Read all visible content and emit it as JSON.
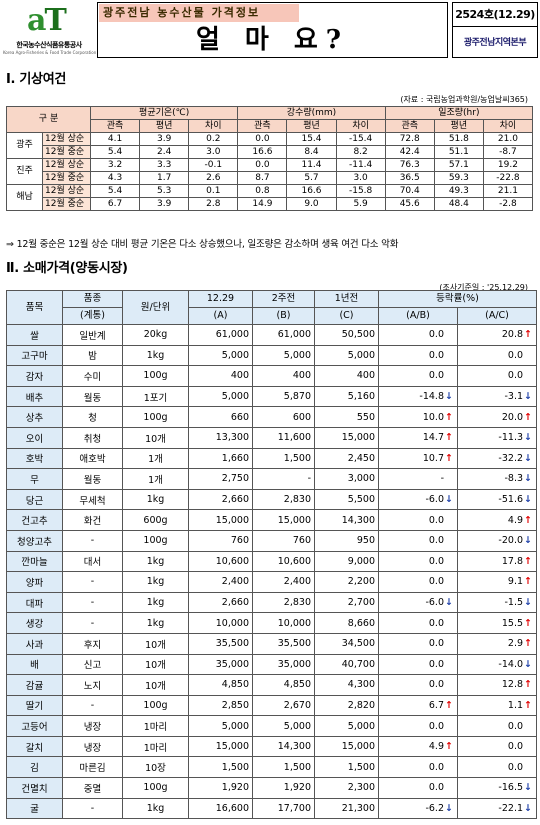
{
  "header": {
    "logo_mark_a": "a",
    "logo_mark_t": "T",
    "logo_kr": "한국농수산식품유통공사",
    "logo_en": "Korea Agro-Fisheries & Food Trade Corporation",
    "subtitle": "광주전남 농수산물 가격정보",
    "title": "얼 마 요?",
    "issue": "2524호(12.29)",
    "org": "광주전남지역본부"
  },
  "section1": {
    "heading": "Ⅰ. 기상여건",
    "source": "(자료 : 국립농업과학원/농업날씨365)",
    "header_group": "구  분",
    "groups": [
      "평균기온(℃)",
      "강수량(mm)",
      "일조량(hr)"
    ],
    "subheaders": [
      "관측",
      "평년",
      "차이"
    ],
    "regions": [
      {
        "name": "광주",
        "rows": [
          {
            "period": "12월 상순",
            "v": [
              "4.1",
              "3.9",
              "0.2",
              "0.0",
              "15.4",
              "-15.4",
              "72.8",
              "51.8",
              "21.0"
            ]
          },
          {
            "period": "12월 중순",
            "v": [
              "5.4",
              "2.4",
              "3.0",
              "16.6",
              "8.4",
              "8.2",
              "42.4",
              "51.1",
              "-8.7"
            ]
          }
        ]
      },
      {
        "name": "진주",
        "rows": [
          {
            "period": "12월 상순",
            "v": [
              "3.2",
              "3.3",
              "-0.1",
              "0.0",
              "11.4",
              "-11.4",
              "76.3",
              "57.1",
              "19.2"
            ]
          },
          {
            "period": "12월 중순",
            "v": [
              "4.3",
              "1.7",
              "2.6",
              "8.7",
              "5.7",
              "3.0",
              "36.5",
              "59.3",
              "-22.8"
            ]
          }
        ]
      },
      {
        "name": "해남",
        "rows": [
          {
            "period": "12월 상순",
            "v": [
              "5.4",
              "5.3",
              "0.1",
              "0.8",
              "16.6",
              "-15.8",
              "70.4",
              "49.3",
              "21.1"
            ]
          },
          {
            "period": "12월 중순",
            "v": [
              "6.7",
              "3.9",
              "2.8",
              "14.9",
              "9.0",
              "5.9",
              "45.6",
              "48.4",
              "-2.8"
            ]
          }
        ]
      }
    ],
    "note": "⇒ 12월 중순은 12월 상순 대비 평균 기온은 다소 상승했으나, 일조량은 감소하며 생육 여건 다소 악화"
  },
  "section2": {
    "heading": "Ⅱ. 소매가격(양동시장)",
    "survey_date": "(조사기준일 : '25.12.29)",
    "columns": {
      "item": "품목",
      "variety": "품종",
      "variety2": "(계통)",
      "unit": "원/단위",
      "c1": "12.29",
      "c1b": "(A)",
      "c2": "2주전",
      "c2b": "(B)",
      "c3": "1년전",
      "c3b": "(C)",
      "rate": "등락률(%)",
      "r1": "(A/B)",
      "r2": "(A/C)"
    },
    "rows": [
      {
        "item": "쌀",
        "variety": "일반계",
        "unit": "20kg",
        "a": "61,000",
        "b": "61,000",
        "c": "50,500",
        "ab": "0.0",
        "ab_dir": "",
        "ac": "20.8",
        "ac_dir": "up"
      },
      {
        "item": "고구마",
        "variety": "밤",
        "unit": "1kg",
        "a": "5,000",
        "b": "5,000",
        "c": "5,000",
        "ab": "0.0",
        "ab_dir": "",
        "ac": "0.0",
        "ac_dir": ""
      },
      {
        "item": "감자",
        "variety": "수미",
        "unit": "100g",
        "a": "400",
        "b": "400",
        "c": "400",
        "ab": "0.0",
        "ab_dir": "",
        "ac": "0.0",
        "ac_dir": ""
      },
      {
        "item": "배추",
        "variety": "월동",
        "unit": "1포기",
        "a": "5,000",
        "b": "5,870",
        "c": "5,160",
        "ab": "-14.8",
        "ab_dir": "dn",
        "ac": "-3.1",
        "ac_dir": "dn"
      },
      {
        "item": "상추",
        "variety": "청",
        "unit": "100g",
        "a": "660",
        "b": "600",
        "c": "550",
        "ab": "10.0",
        "ab_dir": "up",
        "ac": "20.0",
        "ac_dir": "up"
      },
      {
        "item": "오이",
        "variety": "취청",
        "unit": "10개",
        "a": "13,300",
        "b": "11,600",
        "c": "15,000",
        "ab": "14.7",
        "ab_dir": "up",
        "ac": "-11.3",
        "ac_dir": "dn"
      },
      {
        "item": "호박",
        "variety": "애호박",
        "unit": "1개",
        "a": "1,660",
        "b": "1,500",
        "c": "2,450",
        "ab": "10.7",
        "ab_dir": "up",
        "ac": "-32.2",
        "ac_dir": "dn"
      },
      {
        "item": "무",
        "variety": "월동",
        "unit": "1개",
        "a": "2,750",
        "b": "-",
        "c": "3,000",
        "ab": "-",
        "ab_dir": "",
        "ac": "-8.3",
        "ac_dir": "dn"
      },
      {
        "item": "당근",
        "variety": "무세척",
        "unit": "1kg",
        "a": "2,660",
        "b": "2,830",
        "c": "5,500",
        "ab": "-6.0",
        "ab_dir": "dn",
        "ac": "-51.6",
        "ac_dir": "dn"
      },
      {
        "item": "건고추",
        "variety": "화건",
        "unit": "600g",
        "a": "15,000",
        "b": "15,000",
        "c": "14,300",
        "ab": "0.0",
        "ab_dir": "",
        "ac": "4.9",
        "ac_dir": "up"
      },
      {
        "item": "청양고추",
        "variety": "-",
        "unit": "100g",
        "a": "760",
        "b": "760",
        "c": "950",
        "ab": "0.0",
        "ab_dir": "",
        "ac": "-20.0",
        "ac_dir": "dn"
      },
      {
        "item": "깐마늘",
        "variety": "대서",
        "unit": "1kg",
        "a": "10,600",
        "b": "10,600",
        "c": "9,000",
        "ab": "0.0",
        "ab_dir": "",
        "ac": "17.8",
        "ac_dir": "up"
      },
      {
        "item": "양파",
        "variety": "-",
        "unit": "1kg",
        "a": "2,400",
        "b": "2,400",
        "c": "2,200",
        "ab": "0.0",
        "ab_dir": "",
        "ac": "9.1",
        "ac_dir": "up"
      },
      {
        "item": "대파",
        "variety": "-",
        "unit": "1kg",
        "a": "2,660",
        "b": "2,830",
        "c": "2,700",
        "ab": "-6.0",
        "ab_dir": "dn",
        "ac": "-1.5",
        "ac_dir": "dn"
      },
      {
        "item": "생강",
        "variety": "-",
        "unit": "1kg",
        "a": "10,000",
        "b": "10,000",
        "c": "8,660",
        "ab": "0.0",
        "ab_dir": "",
        "ac": "15.5",
        "ac_dir": "up"
      },
      {
        "item": "사과",
        "variety": "후지",
        "unit": "10개",
        "a": "35,500",
        "b": "35,500",
        "c": "34,500",
        "ab": "0.0",
        "ab_dir": "",
        "ac": "2.9",
        "ac_dir": "up"
      },
      {
        "item": "배",
        "variety": "신고",
        "unit": "10개",
        "a": "35,000",
        "b": "35,000",
        "c": "40,700",
        "ab": "0.0",
        "ab_dir": "",
        "ac": "-14.0",
        "ac_dir": "dn"
      },
      {
        "item": "감귤",
        "variety": "노지",
        "unit": "10개",
        "a": "4,850",
        "b": "4,850",
        "c": "4,300",
        "ab": "0.0",
        "ab_dir": "",
        "ac": "12.8",
        "ac_dir": "up"
      },
      {
        "item": "딸기",
        "variety": "-",
        "unit": "100g",
        "a": "2,850",
        "b": "2,670",
        "c": "2,820",
        "ab": "6.7",
        "ab_dir": "up",
        "ac": "1.1",
        "ac_dir": "up"
      },
      {
        "item": "고등어",
        "variety": "냉장",
        "unit": "1마리",
        "a": "5,000",
        "b": "5,000",
        "c": "5,000",
        "ab": "0.0",
        "ab_dir": "",
        "ac": "0.0",
        "ac_dir": ""
      },
      {
        "item": "갈치",
        "variety": "냉장",
        "unit": "1마리",
        "a": "15,000",
        "b": "14,300",
        "c": "15,000",
        "ab": "4.9",
        "ab_dir": "up",
        "ac": "0.0",
        "ac_dir": ""
      },
      {
        "item": "김",
        "variety": "마른김",
        "unit": "10장",
        "a": "1,500",
        "b": "1,500",
        "c": "1,500",
        "ab": "0.0",
        "ab_dir": "",
        "ac": "0.0",
        "ac_dir": ""
      },
      {
        "item": "건멸치",
        "variety": "중멸",
        "unit": "100g",
        "a": "1,920",
        "b": "1,920",
        "c": "2,300",
        "ab": "0.0",
        "ab_dir": "",
        "ac": "-16.5",
        "ac_dir": "dn"
      },
      {
        "item": "굴",
        "variety": "-",
        "unit": "1kg",
        "a": "16,600",
        "b": "17,700",
        "c": "21,300",
        "ab": "-6.2",
        "ab_dir": "dn",
        "ac": "-22.1",
        "ac_dir": "dn"
      }
    ]
  },
  "colors": {
    "up": "#e00000",
    "down": "#1d3fa8",
    "table_header": "#ddebf7",
    "weather_header": "#f8d7c8"
  },
  "arrows": {
    "up": "↑",
    "dn": "↓"
  }
}
